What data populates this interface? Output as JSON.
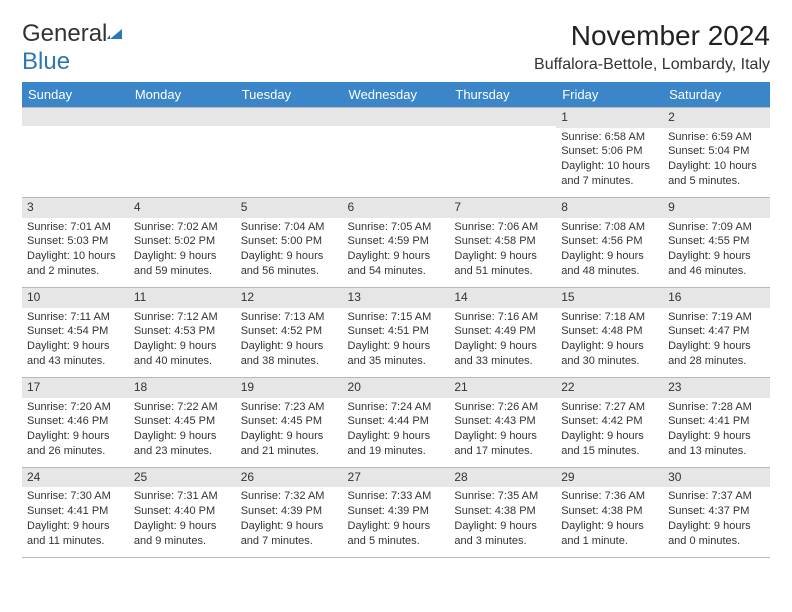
{
  "logo": {
    "word1": "General",
    "word2": "Blue"
  },
  "title": "November 2024",
  "location": "Buffalora-Bettole, Lombardy, Italy",
  "day_headers": [
    "Sunday",
    "Monday",
    "Tuesday",
    "Wednesday",
    "Thursday",
    "Friday",
    "Saturday"
  ],
  "header_bg": "#3a86c8",
  "daynum_bg": "#e6e6e6",
  "border_color": "#b8b8b8",
  "weeks": [
    [
      {
        "n": "",
        "sr": "",
        "ss": "",
        "dl": ""
      },
      {
        "n": "",
        "sr": "",
        "ss": "",
        "dl": ""
      },
      {
        "n": "",
        "sr": "",
        "ss": "",
        "dl": ""
      },
      {
        "n": "",
        "sr": "",
        "ss": "",
        "dl": ""
      },
      {
        "n": "",
        "sr": "",
        "ss": "",
        "dl": ""
      },
      {
        "n": "1",
        "sr": "Sunrise: 6:58 AM",
        "ss": "Sunset: 5:06 PM",
        "dl": "Daylight: 10 hours and 7 minutes."
      },
      {
        "n": "2",
        "sr": "Sunrise: 6:59 AM",
        "ss": "Sunset: 5:04 PM",
        "dl": "Daylight: 10 hours and 5 minutes."
      }
    ],
    [
      {
        "n": "3",
        "sr": "Sunrise: 7:01 AM",
        "ss": "Sunset: 5:03 PM",
        "dl": "Daylight: 10 hours and 2 minutes."
      },
      {
        "n": "4",
        "sr": "Sunrise: 7:02 AM",
        "ss": "Sunset: 5:02 PM",
        "dl": "Daylight: 9 hours and 59 minutes."
      },
      {
        "n": "5",
        "sr": "Sunrise: 7:04 AM",
        "ss": "Sunset: 5:00 PM",
        "dl": "Daylight: 9 hours and 56 minutes."
      },
      {
        "n": "6",
        "sr": "Sunrise: 7:05 AM",
        "ss": "Sunset: 4:59 PM",
        "dl": "Daylight: 9 hours and 54 minutes."
      },
      {
        "n": "7",
        "sr": "Sunrise: 7:06 AM",
        "ss": "Sunset: 4:58 PM",
        "dl": "Daylight: 9 hours and 51 minutes."
      },
      {
        "n": "8",
        "sr": "Sunrise: 7:08 AM",
        "ss": "Sunset: 4:56 PM",
        "dl": "Daylight: 9 hours and 48 minutes."
      },
      {
        "n": "9",
        "sr": "Sunrise: 7:09 AM",
        "ss": "Sunset: 4:55 PM",
        "dl": "Daylight: 9 hours and 46 minutes."
      }
    ],
    [
      {
        "n": "10",
        "sr": "Sunrise: 7:11 AM",
        "ss": "Sunset: 4:54 PM",
        "dl": "Daylight: 9 hours and 43 minutes."
      },
      {
        "n": "11",
        "sr": "Sunrise: 7:12 AM",
        "ss": "Sunset: 4:53 PM",
        "dl": "Daylight: 9 hours and 40 minutes."
      },
      {
        "n": "12",
        "sr": "Sunrise: 7:13 AM",
        "ss": "Sunset: 4:52 PM",
        "dl": "Daylight: 9 hours and 38 minutes."
      },
      {
        "n": "13",
        "sr": "Sunrise: 7:15 AM",
        "ss": "Sunset: 4:51 PM",
        "dl": "Daylight: 9 hours and 35 minutes."
      },
      {
        "n": "14",
        "sr": "Sunrise: 7:16 AM",
        "ss": "Sunset: 4:49 PM",
        "dl": "Daylight: 9 hours and 33 minutes."
      },
      {
        "n": "15",
        "sr": "Sunrise: 7:18 AM",
        "ss": "Sunset: 4:48 PM",
        "dl": "Daylight: 9 hours and 30 minutes."
      },
      {
        "n": "16",
        "sr": "Sunrise: 7:19 AM",
        "ss": "Sunset: 4:47 PM",
        "dl": "Daylight: 9 hours and 28 minutes."
      }
    ],
    [
      {
        "n": "17",
        "sr": "Sunrise: 7:20 AM",
        "ss": "Sunset: 4:46 PM",
        "dl": "Daylight: 9 hours and 26 minutes."
      },
      {
        "n": "18",
        "sr": "Sunrise: 7:22 AM",
        "ss": "Sunset: 4:45 PM",
        "dl": "Daylight: 9 hours and 23 minutes."
      },
      {
        "n": "19",
        "sr": "Sunrise: 7:23 AM",
        "ss": "Sunset: 4:45 PM",
        "dl": "Daylight: 9 hours and 21 minutes."
      },
      {
        "n": "20",
        "sr": "Sunrise: 7:24 AM",
        "ss": "Sunset: 4:44 PM",
        "dl": "Daylight: 9 hours and 19 minutes."
      },
      {
        "n": "21",
        "sr": "Sunrise: 7:26 AM",
        "ss": "Sunset: 4:43 PM",
        "dl": "Daylight: 9 hours and 17 minutes."
      },
      {
        "n": "22",
        "sr": "Sunrise: 7:27 AM",
        "ss": "Sunset: 4:42 PM",
        "dl": "Daylight: 9 hours and 15 minutes."
      },
      {
        "n": "23",
        "sr": "Sunrise: 7:28 AM",
        "ss": "Sunset: 4:41 PM",
        "dl": "Daylight: 9 hours and 13 minutes."
      }
    ],
    [
      {
        "n": "24",
        "sr": "Sunrise: 7:30 AM",
        "ss": "Sunset: 4:41 PM",
        "dl": "Daylight: 9 hours and 11 minutes."
      },
      {
        "n": "25",
        "sr": "Sunrise: 7:31 AM",
        "ss": "Sunset: 4:40 PM",
        "dl": "Daylight: 9 hours and 9 minutes."
      },
      {
        "n": "26",
        "sr": "Sunrise: 7:32 AM",
        "ss": "Sunset: 4:39 PM",
        "dl": "Daylight: 9 hours and 7 minutes."
      },
      {
        "n": "27",
        "sr": "Sunrise: 7:33 AM",
        "ss": "Sunset: 4:39 PM",
        "dl": "Daylight: 9 hours and 5 minutes."
      },
      {
        "n": "28",
        "sr": "Sunrise: 7:35 AM",
        "ss": "Sunset: 4:38 PM",
        "dl": "Daylight: 9 hours and 3 minutes."
      },
      {
        "n": "29",
        "sr": "Sunrise: 7:36 AM",
        "ss": "Sunset: 4:38 PM",
        "dl": "Daylight: 9 hours and 1 minute."
      },
      {
        "n": "30",
        "sr": "Sunrise: 7:37 AM",
        "ss": "Sunset: 4:37 PM",
        "dl": "Daylight: 9 hours and 0 minutes."
      }
    ]
  ]
}
